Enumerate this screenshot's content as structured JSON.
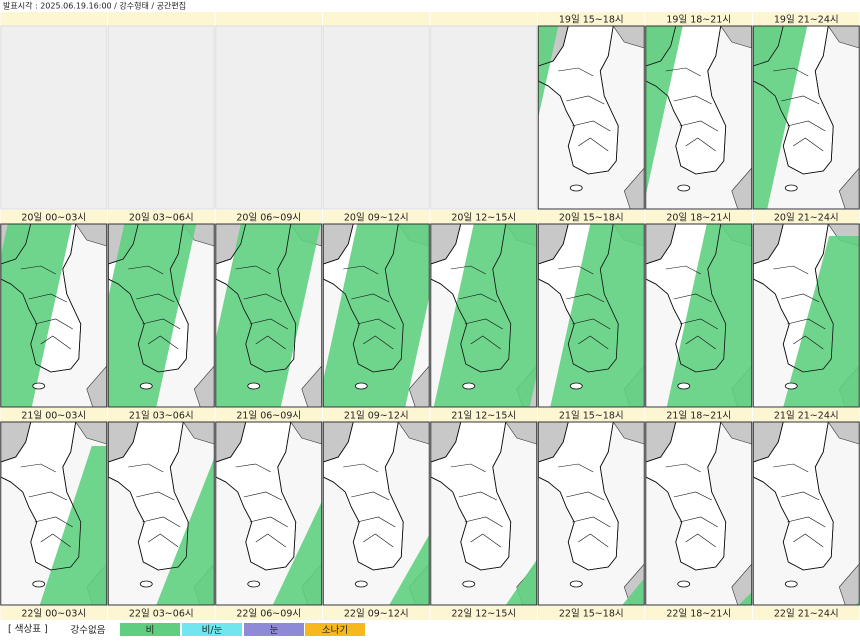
{
  "header": {
    "text": "발표시각 : 2025.06.19.16:00 / 강수형태 / 공간편집"
  },
  "time_labels": [
    [
      null,
      null,
      null,
      null,
      null,
      "19일 15~18시",
      "19일 18~21시",
      "19일 21~24시"
    ],
    [
      "20일 00~03시",
      "20일 03~06시",
      "20일 06~09시",
      "20일 09~12시",
      "20일 12~15시",
      "20일 15~18시",
      "20일 18~21시",
      "20일 21~24시"
    ],
    [
      "21일 00~03시",
      "21일 03~06시",
      "21일 06~09시",
      "21일 09~12시",
      "21일 12~15시",
      "21일 15~18시",
      "21일 18~21시",
      "21일 21~24시"
    ],
    [
      "22일 00~03시",
      "22일 03~06시",
      "22일 06~09시",
      "22일 09~12시",
      "22일 12~15시",
      "22일 15~18시",
      "22일 18~21시",
      "22일 21~24시"
    ]
  ],
  "legend": {
    "title": "[ 색상표 ]",
    "items": [
      {
        "label": "강수없음",
        "color": null
      },
      {
        "label": "비",
        "color": "#5fcf7f"
      },
      {
        "label": "비/눈",
        "color": "#72e6ee"
      },
      {
        "label": "눈",
        "color": "#8f8ad6"
      },
      {
        "label": "소나기",
        "color": "#f6b81c"
      }
    ]
  }
}
